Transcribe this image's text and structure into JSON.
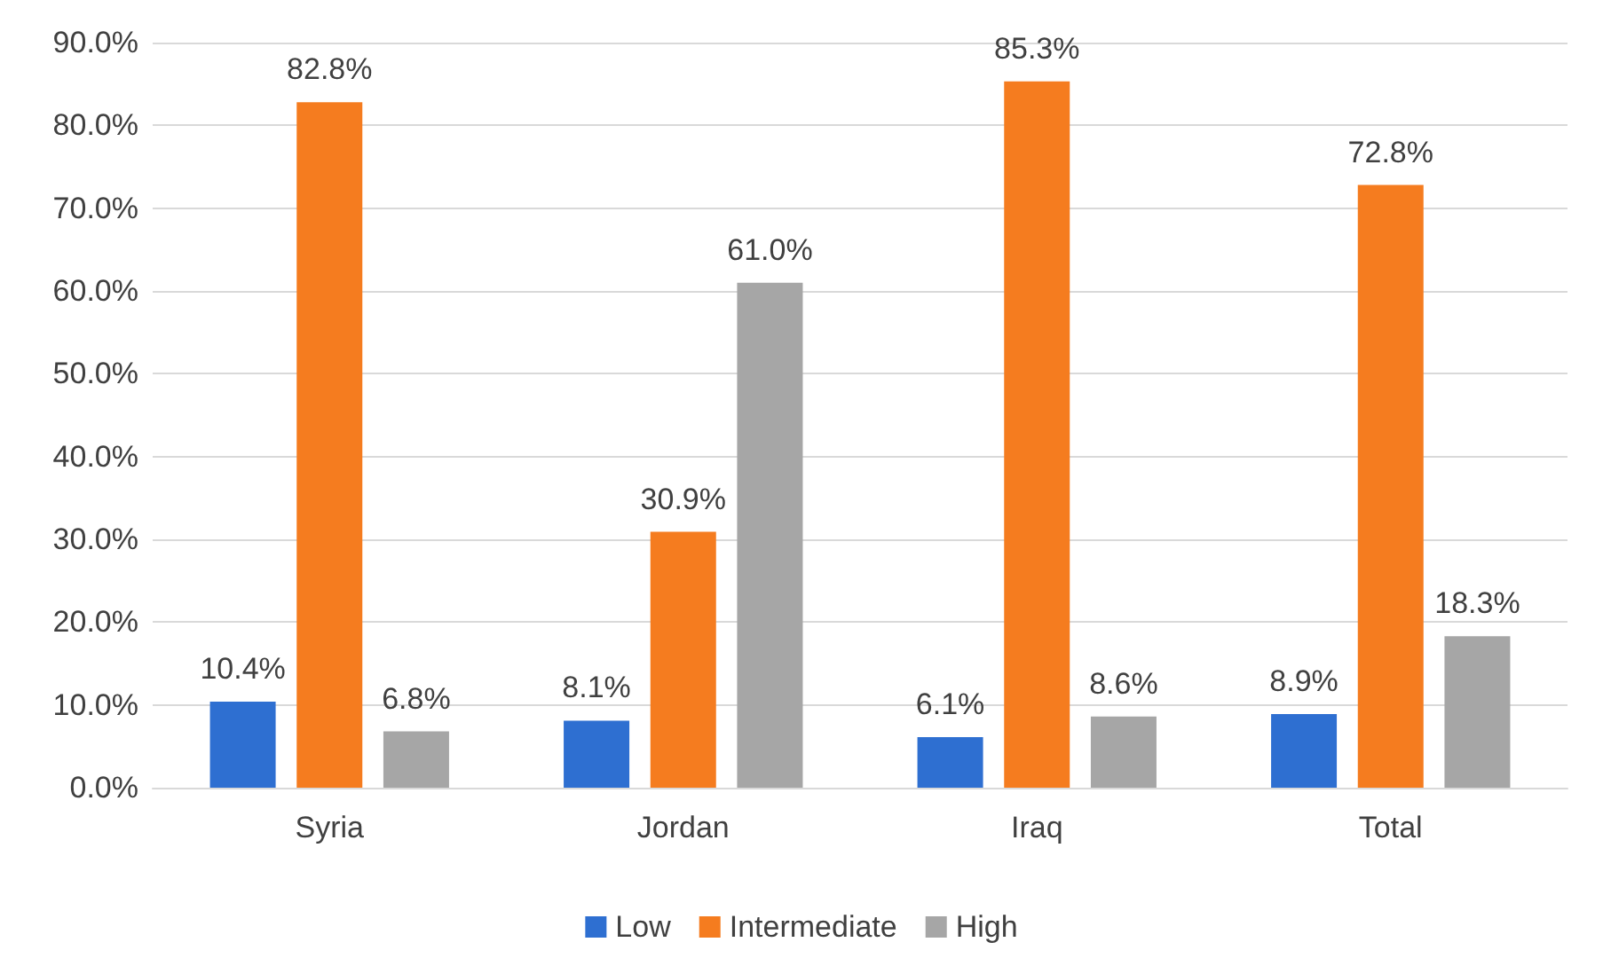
{
  "chart_data": {
    "type": "bar",
    "categories": [
      "Syria",
      "Jordan",
      "Iraq",
      "Total"
    ],
    "series": [
      {
        "name": "Low",
        "color": "#2e6fd1",
        "values": [
          10.4,
          8.1,
          6.1,
          8.9
        ],
        "value_labels": [
          "10.4%",
          "8.1%",
          "6.1%",
          "8.9%"
        ]
      },
      {
        "name": "Intermediate",
        "color": "#f57c1f",
        "values": [
          82.8,
          30.9,
          85.3,
          72.8
        ],
        "value_labels": [
          "82.8%",
          "30.9%",
          "85.3%",
          "72.8%"
        ]
      },
      {
        "name": "High",
        "color": "#a6a6a6",
        "values": [
          6.8,
          61.0,
          8.6,
          18.3
        ],
        "value_labels": [
          "6.8%",
          "61.0%",
          "8.6%",
          "18.3%"
        ]
      }
    ],
    "ylim": [
      0,
      90
    ],
    "yticks": [
      {
        "value": 0,
        "label": "0.0%"
      },
      {
        "value": 10,
        "label": "10.0%"
      },
      {
        "value": 20,
        "label": "20.0%"
      },
      {
        "value": 30,
        "label": "30.0%"
      },
      {
        "value": 40,
        "label": "40.0%"
      },
      {
        "value": 50,
        "label": "50.0%"
      },
      {
        "value": 60,
        "label": "60.0%"
      },
      {
        "value": 70,
        "label": "70.0%"
      },
      {
        "value": 80,
        "label": "80.0%"
      },
      {
        "value": 90,
        "label": "90.0%"
      }
    ],
    "grid": "y",
    "legend": "bottom"
  }
}
